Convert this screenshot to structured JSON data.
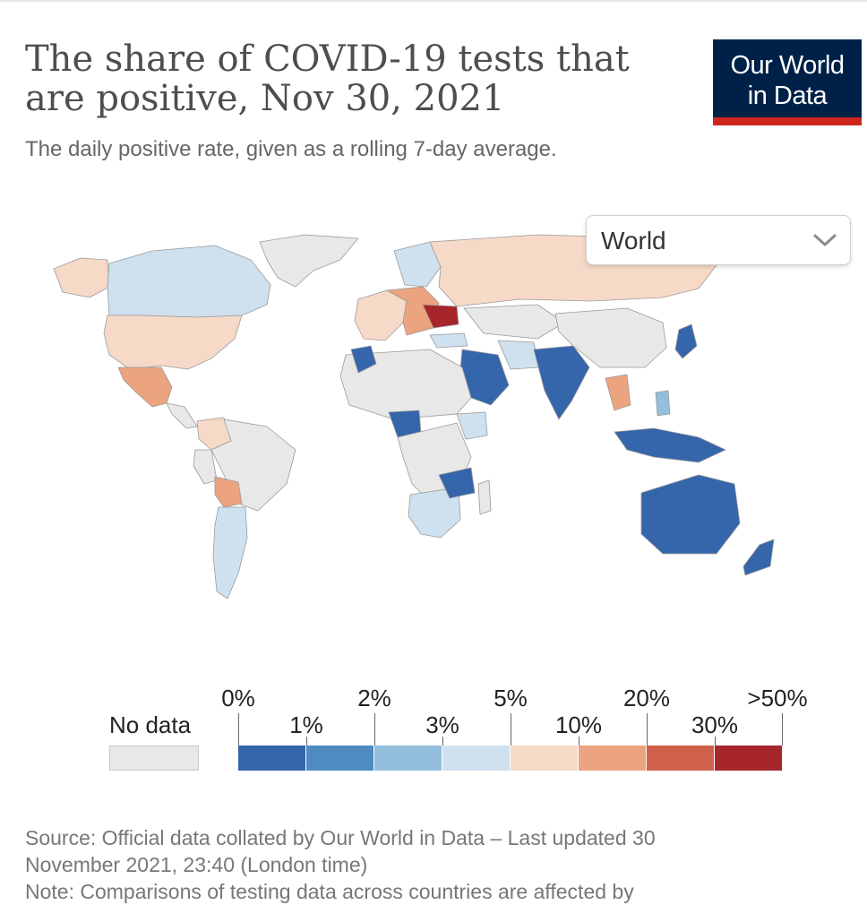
{
  "chart": {
    "title": "The share of COVID-19 tests that are positive, Nov 30, 2021",
    "subtitle": "The daily positive rate, given as a rolling 7-day average."
  },
  "logo": {
    "line1": "Our World",
    "line2": "in Data"
  },
  "region_selector": {
    "value": "World"
  },
  "legend": {
    "no_data_label": "No data",
    "bins": [
      {
        "range": "0% - 1%",
        "color": "#3565ab"
      },
      {
        "range": "1% - 2%",
        "color": "#4f8bc0"
      },
      {
        "range": "2% - 3%",
        "color": "#93bfdc"
      },
      {
        "range": "3% - 5%",
        "color": "#cfe1ef"
      },
      {
        "range": "5% - 10%",
        "color": "#f7d9c7"
      },
      {
        "range": "10% - 20%",
        "color": "#eba47f"
      },
      {
        "range": "20% - 30%",
        "color": "#d0604b"
      },
      {
        "range": "30% - 50%+",
        "color": "#a6262b"
      }
    ],
    "top_labels": [
      "0%",
      "2%",
      "5%",
      "20%",
      ">50%"
    ],
    "mid_labels": [
      "1%",
      "3%",
      "10%",
      "30%"
    ],
    "no_data_color": "#e8e8e8"
  },
  "source": {
    "line1": "Source: Official data collated by Our World in Data – Last updated 30",
    "line2": "November 2021, 23:40 (London time)",
    "line3": "Note: Comparisons of testing data across countries are affected by"
  }
}
